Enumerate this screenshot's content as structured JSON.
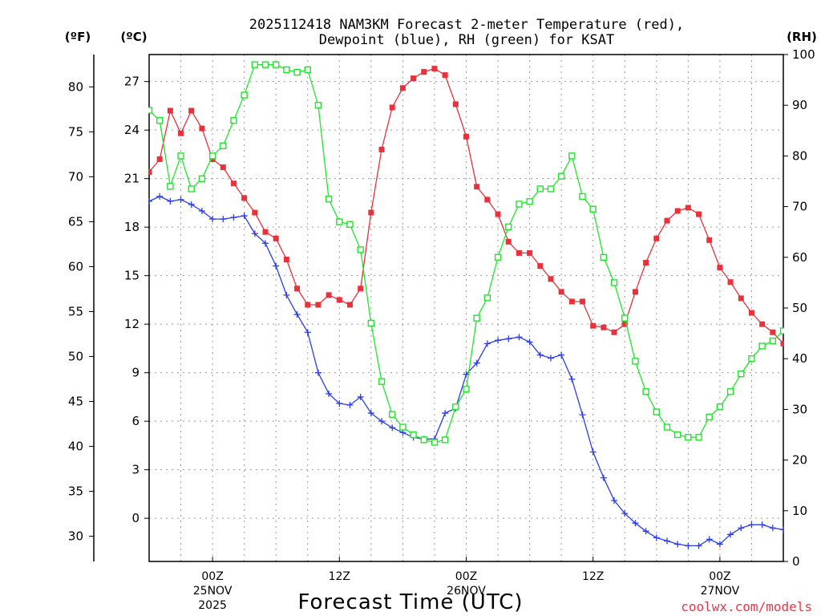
{
  "chart_data": {
    "type": "line",
    "title_line1": "2025112418 NAM3KM Forecast 2-meter Temperature (red),",
    "title_line2": "Dewpoint (blue), RH (green) for KSAT",
    "unit_f": "(ºF)",
    "unit_c": "(ºC)",
    "unit_rh": "(RH)",
    "xlabel": "Forecast Time (UTC)",
    "credit": "coolwx.com/models",
    "x_unit": "hours since 2025-11-24 18Z",
    "xlim": [
      0,
      60
    ],
    "ylim_c": [
      -2.67,
      28.67
    ],
    "ylim_f": [
      27.2,
      83.6
    ],
    "ylim_rh": [
      0,
      100
    ],
    "y_ticks_c": [
      0,
      3,
      6,
      9,
      12,
      15,
      18,
      21,
      24,
      27
    ],
    "y_ticks_f": [
      30,
      35,
      40,
      45,
      50,
      55,
      60,
      65,
      70,
      75,
      80
    ],
    "y_ticks_rh": [
      0,
      10,
      20,
      30,
      40,
      50,
      60,
      70,
      80,
      90,
      100
    ],
    "x_ticks": [
      {
        "x": 6,
        "label": "00Z",
        "label2": "25NOV",
        "label3": "2025"
      },
      {
        "x": 18,
        "label": "12Z",
        "label2": "",
        "label3": ""
      },
      {
        "x": 30,
        "label": "00Z",
        "label2": "26NOV",
        "label3": ""
      },
      {
        "x": 42,
        "label": "12Z",
        "label2": "",
        "label3": ""
      },
      {
        "x": 54,
        "label": "00Z",
        "label2": "27NOV",
        "label3": ""
      }
    ],
    "x_grid": [
      0,
      3,
      6,
      9,
      12,
      15,
      18,
      21,
      24,
      27,
      30,
      33,
      36,
      39,
      42,
      45,
      48,
      51,
      54,
      57,
      60
    ],
    "series": [
      {
        "name": "Temperature",
        "axis": "c",
        "color": "#e8313a",
        "marker": "square-filled",
        "x": [
          0,
          1,
          2,
          3,
          4,
          5,
          6,
          7,
          8,
          9,
          10,
          11,
          12,
          13,
          14,
          15,
          16,
          17,
          18,
          19,
          20,
          21,
          22,
          23,
          24,
          25,
          26,
          27,
          28,
          29,
          30,
          31,
          32,
          33,
          34,
          35,
          36,
          37,
          38,
          39,
          40,
          41,
          42,
          43,
          44,
          45,
          46,
          47,
          48,
          49,
          50,
          51,
          52,
          53,
          54,
          55,
          56,
          57,
          58,
          59,
          60
        ],
        "values": [
          21.4,
          22.2,
          25.2,
          23.8,
          25.2,
          24.1,
          22.2,
          21.7,
          20.7,
          19.8,
          18.9,
          17.7,
          17.3,
          16.0,
          14.2,
          13.2,
          13.2,
          13.8,
          13.5,
          13.2,
          14.2,
          18.9,
          22.8,
          25.4,
          26.6,
          27.2,
          27.6,
          27.8,
          27.4,
          25.6,
          23.6,
          20.5,
          19.7,
          18.8,
          17.1,
          16.4,
          16.4,
          15.6,
          14.8,
          14.0,
          13.4,
          13.4,
          11.9,
          11.8,
          11.5,
          12.0,
          14.0,
          15.8,
          17.3,
          18.4,
          19.0,
          19.2,
          18.8,
          17.2,
          15.5,
          14.6,
          13.6,
          12.7,
          12.0,
          11.5,
          10.8
        ]
      },
      {
        "name": "Dewpoint",
        "axis": "c",
        "color": "#2a3de8",
        "marker": "plus",
        "x": [
          0,
          1,
          2,
          3,
          4,
          5,
          6,
          7,
          8,
          9,
          10,
          11,
          12,
          13,
          14,
          15,
          16,
          17,
          18,
          19,
          20,
          21,
          22,
          23,
          24,
          25,
          26,
          27,
          28,
          29,
          30,
          31,
          32,
          33,
          34,
          35,
          36,
          37,
          38,
          39,
          40,
          41,
          42,
          43,
          44,
          45,
          46,
          47,
          48,
          49,
          50,
          51,
          52,
          53,
          54,
          55,
          56,
          57,
          58,
          59,
          60
        ],
        "values": [
          19.6,
          19.9,
          19.6,
          19.7,
          19.4,
          19.0,
          18.5,
          18.5,
          18.6,
          18.7,
          17.6,
          17.0,
          15.6,
          13.8,
          12.6,
          11.5,
          9.0,
          7.7,
          7.1,
          7.0,
          7.5,
          6.5,
          6.0,
          5.6,
          5.3,
          5.0,
          4.9,
          4.9,
          6.5,
          6.8,
          8.9,
          9.6,
          10.8,
          11.0,
          11.1,
          11.2,
          10.9,
          10.1,
          9.9,
          10.1,
          8.6,
          6.4,
          4.1,
          2.5,
          1.1,
          0.3,
          -0.3,
          -0.8,
          -1.2,
          -1.4,
          -1.6,
          -1.7,
          -1.7,
          -1.3,
          -1.6,
          -1.0,
          -0.6,
          -0.4,
          -0.4,
          -0.6,
          -0.7
        ]
      },
      {
        "name": "Relative Humidity",
        "axis": "rh",
        "color": "#1ee62a",
        "marker": "square-open",
        "x": [
          0,
          1,
          2,
          3,
          4,
          5,
          6,
          7,
          8,
          9,
          10,
          11,
          12,
          13,
          14,
          15,
          16,
          17,
          18,
          19,
          20,
          21,
          22,
          23,
          24,
          25,
          26,
          27,
          28,
          29,
          30,
          31,
          32,
          33,
          34,
          35,
          36,
          37,
          38,
          39,
          40,
          41,
          42,
          43,
          44,
          45,
          46,
          47,
          48,
          49,
          50,
          51,
          52,
          53,
          54,
          55,
          56,
          57,
          58,
          59,
          60
        ],
        "values": [
          89,
          87,
          74,
          80,
          73.5,
          75.5,
          80,
          82,
          87,
          92,
          98,
          98,
          98,
          97,
          96.5,
          97,
          90,
          71.5,
          67,
          66.5,
          61.5,
          47,
          35.5,
          29,
          26.5,
          25,
          24,
          23.5,
          24,
          30.5,
          34,
          48,
          52,
          60,
          66,
          70.5,
          71,
          73.5,
          73.5,
          76,
          80,
          72,
          69.5,
          60,
          55,
          48,
          39.5,
          33.5,
          29.5,
          26.5,
          25,
          24.5,
          24.5,
          28.5,
          30.5,
          33.5,
          37,
          40,
          42.5,
          43.5,
          45.5
        ]
      }
    ]
  }
}
